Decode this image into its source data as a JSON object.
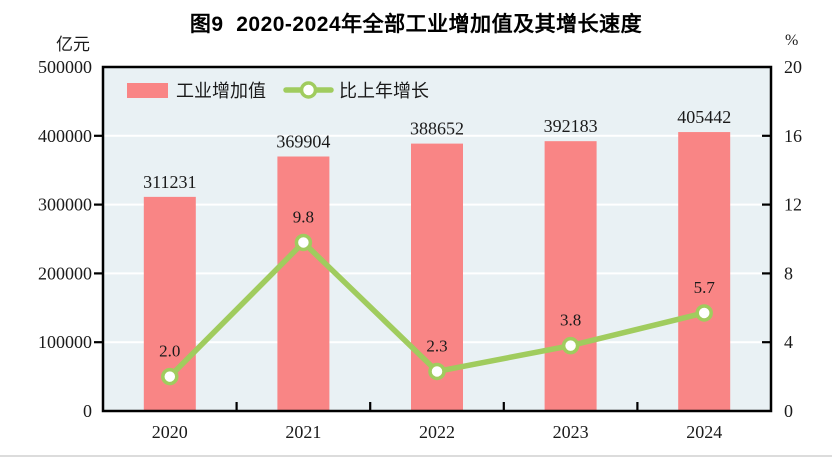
{
  "title": "图9  2020-2024年全部工业增加值及其增长速度",
  "left_axis": {
    "unit": "亿元",
    "ticks": [
      "500000",
      "400000",
      "300000",
      "200000",
      "100000",
      "0"
    ]
  },
  "right_axis": {
    "unit": "%",
    "ticks": [
      "20",
      "16",
      "12",
      "8",
      "4",
      "0"
    ]
  },
  "legend": [
    {
      "label": "工业增加值",
      "type": "bar"
    },
    {
      "label": "比上年增长",
      "type": "line"
    }
  ],
  "chart_data": {
    "type": "bar+line",
    "categories": [
      "2020",
      "2021",
      "2022",
      "2023",
      "2024"
    ],
    "series": [
      {
        "name": "工业增加值",
        "type": "bar",
        "axis": "left",
        "unit": "亿元",
        "values": [
          311231,
          369904,
          388652,
          392183,
          405442
        ],
        "labels": [
          "311231",
          "369904",
          "388652",
          "392183",
          "405442"
        ]
      },
      {
        "name": "比上年增长",
        "type": "line",
        "axis": "right",
        "unit": "%",
        "values": [
          2.0,
          9.8,
          2.3,
          3.8,
          5.7
        ],
        "labels": [
          "2.0",
          "9.8",
          "2.3",
          "3.8",
          "5.7"
        ]
      }
    ],
    "title": "图9 2020-2024年全部工业增加值及其增长速度",
    "xlabel": "",
    "ylabel_left": "亿元",
    "ylabel_right": "%",
    "y1lim": [
      0,
      500000
    ],
    "y1step": 100000,
    "y2lim": [
      0,
      20
    ],
    "y2step": 4,
    "grid": true,
    "legend_position": "top-left-inside"
  },
  "colors": {
    "bar": "#F98585",
    "line": "#A0CC5E",
    "marker_fill": "#FFFFFF",
    "plot_bg": "#E9F1F4",
    "grid": "#FFFFFF",
    "axis": "#000000",
    "text": "#1A1A1A",
    "separator": "#DCDCDC"
  }
}
